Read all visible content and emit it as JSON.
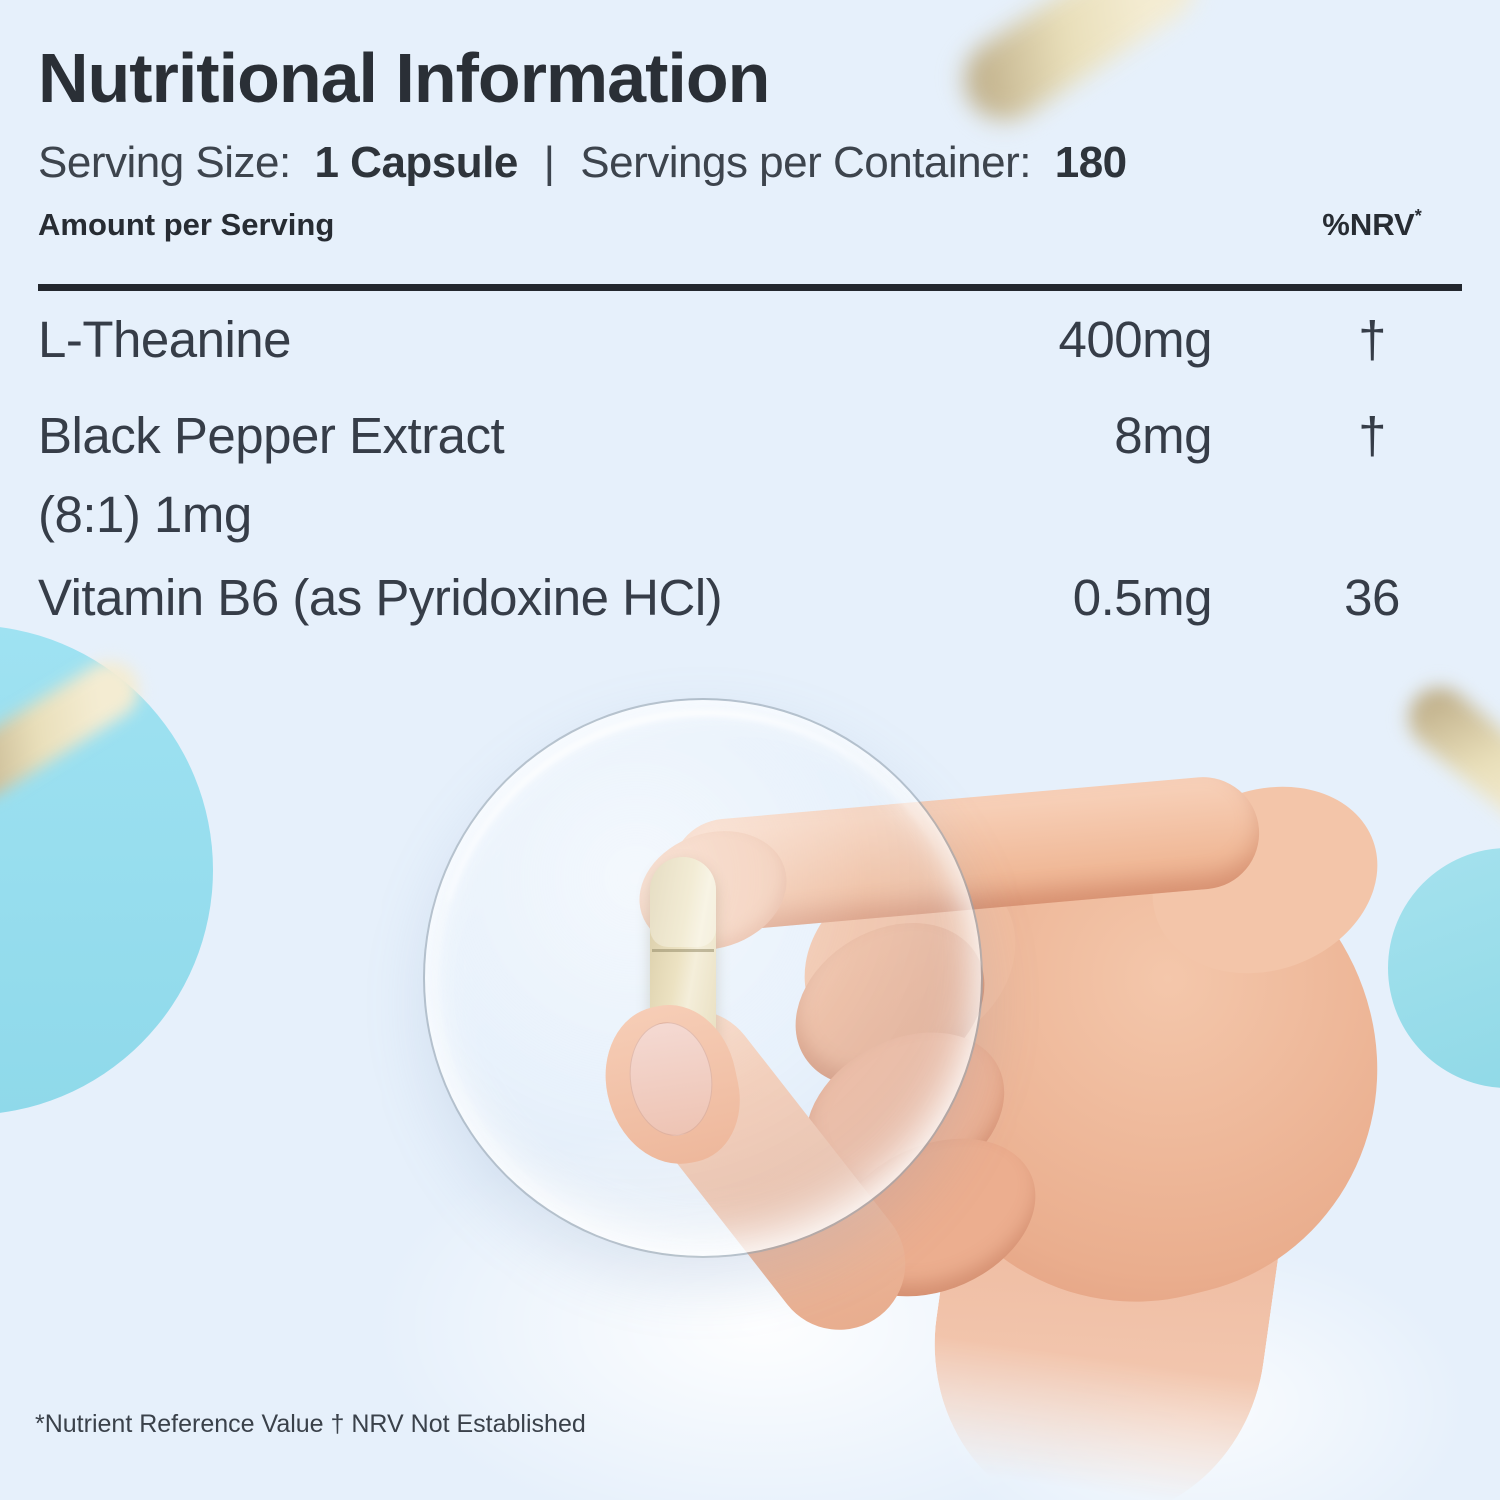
{
  "header": {
    "title": "Nutritional Information",
    "serving": {
      "size_label": "Serving Size:",
      "size_value": "1 Capsule",
      "separator": "|",
      "container_label": "Servings per Container:",
      "container_value": "180"
    }
  },
  "table": {
    "columns": {
      "amount_header": "Amount per Serving",
      "nrv_header": "%NRV",
      "nrv_note_symbol": "*"
    },
    "rows": [
      {
        "name": "L-Theanine",
        "name_line2": "",
        "amount": "400mg",
        "nrv": "†"
      },
      {
        "name": "Black Pepper Extract",
        "name_line2": "(8:1) 1mg",
        "amount": "8mg",
        "nrv": "†"
      },
      {
        "name": "Vitamin B6 (as Pyridoxine HCl)",
        "name_line2": "",
        "amount": "0.5mg",
        "nrv": "36"
      }
    ]
  },
  "footnote": "*Nutrient Reference Value † NRV Not Established",
  "colors": {
    "background": "#e6f0fb",
    "accent_circle": "#97dff0",
    "capsule_cream": "#e9dfbe",
    "text_dark": "#2a2f36",
    "divider": "#23272e"
  }
}
